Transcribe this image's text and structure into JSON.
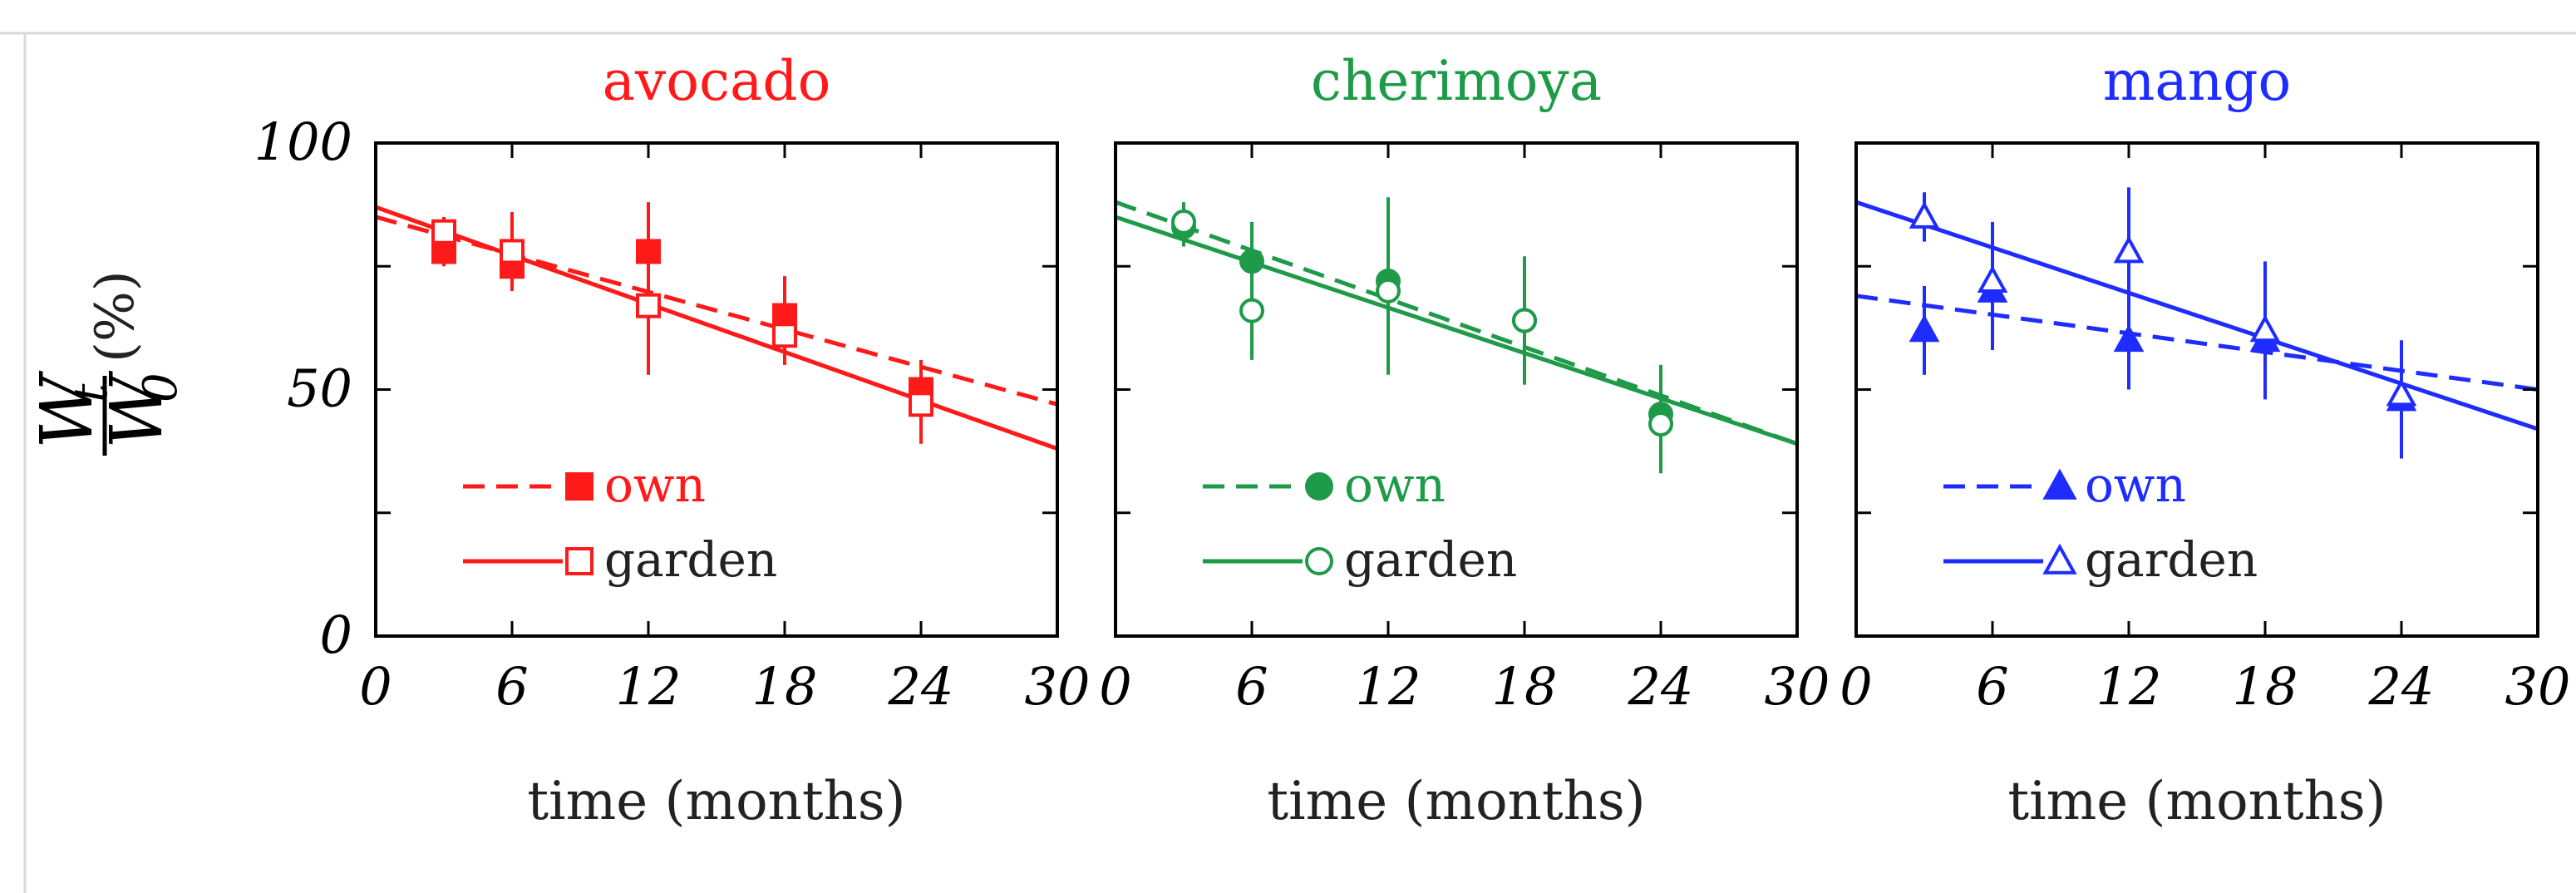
{
  "figure": {
    "y_label": {
      "numerator_var": "W",
      "numerator_sub": "t",
      "denominator_var": "W",
      "denominator_sub": "0",
      "unit": "(%)"
    }
  },
  "chart_data": [
    {
      "type": "scatter",
      "title": "avocado",
      "color": "#ff1a1a",
      "xlabel": "time (months)",
      "ylabel": "W_t / W_0 (%)",
      "xlim": [
        0,
        30
      ],
      "ylim": [
        0,
        100
      ],
      "xticks": [
        0,
        6,
        12,
        18,
        24,
        30
      ],
      "xtick_labels": [
        "0",
        "6",
        "12",
        "18",
        "24",
        "30"
      ],
      "yticks": [
        0,
        50,
        100
      ],
      "ytick_labels": [
        "0",
        "50",
        "100"
      ],
      "series": [
        {
          "name": "own",
          "marker": "square-filled",
          "line": "dashed",
          "points": [
            {
              "x": 3,
              "y": 78,
              "err": 3
            },
            {
              "x": 6,
              "y": 75,
              "err": 5
            },
            {
              "x": 12,
              "y": 78,
              "err": 10
            },
            {
              "x": 18,
              "y": 65,
              "err": 8
            },
            {
              "x": 24,
              "y": 50,
              "err": 6
            }
          ],
          "fit": {
            "x": [
              0,
              30
            ],
            "y": [
              85,
              47
            ]
          }
        },
        {
          "name": "garden",
          "marker": "square-open",
          "line": "solid",
          "points": [
            {
              "x": 3,
              "y": 82,
              "err": 3
            },
            {
              "x": 6,
              "y": 78,
              "err": 8
            },
            {
              "x": 12,
              "y": 67,
              "err": 14
            },
            {
              "x": 18,
              "y": 61,
              "err": 6
            },
            {
              "x": 24,
              "y": 47,
              "err": 8
            }
          ],
          "fit": {
            "x": [
              0,
              30
            ],
            "y": [
              87,
              38
            ]
          }
        }
      ]
    },
    {
      "type": "scatter",
      "title": "cherimoya",
      "color": "#1e9a48",
      "xlabel": "time (months)",
      "ylabel": "W_t / W_0 (%)",
      "xlim": [
        0,
        30
      ],
      "ylim": [
        0,
        100
      ],
      "xticks": [
        0,
        6,
        12,
        18,
        24,
        30
      ],
      "xtick_labels": [
        "0",
        "6",
        "12",
        "18",
        "24",
        "30"
      ],
      "yticks": [
        0,
        50,
        100
      ],
      "ytick_labels": [],
      "series": [
        {
          "name": "own",
          "marker": "circle-filled",
          "line": "dashed",
          "points": [
            {
              "x": 3,
              "y": 83,
              "err": 4
            },
            {
              "x": 6,
              "y": 76,
              "err": 8
            },
            {
              "x": 12,
              "y": 72,
              "err": 17
            },
            {
              "x": 18,
              "y": 64,
              "err": 13
            },
            {
              "x": 24,
              "y": 45,
              "err": 10
            }
          ],
          "fit": {
            "x": [
              0,
              30
            ],
            "y": [
              88,
              39
            ]
          }
        },
        {
          "name": "garden",
          "marker": "circle-open",
          "line": "solid",
          "points": [
            {
              "x": 3,
              "y": 84,
              "err": 4
            },
            {
              "x": 6,
              "y": 66,
              "err": 10
            },
            {
              "x": 12,
              "y": 70,
              "err": 17
            },
            {
              "x": 18,
              "y": 64,
              "err": 13
            },
            {
              "x": 24,
              "y": 43,
              "err": 10
            }
          ],
          "fit": {
            "x": [
              0,
              30
            ],
            "y": [
              85,
              39
            ]
          }
        }
      ]
    },
    {
      "type": "scatter",
      "title": "mango",
      "color": "#1f2cff",
      "xlabel": "time (months)",
      "ylabel": "W_t / W_0 (%)",
      "xlim": [
        0,
        30
      ],
      "ylim": [
        0,
        100
      ],
      "xticks": [
        0,
        6,
        12,
        18,
        24,
        30
      ],
      "xtick_labels": [
        "0",
        "6",
        "12",
        "18",
        "24",
        "30"
      ],
      "yticks": [
        0,
        50,
        100
      ],
      "ytick_labels": [],
      "series": [
        {
          "name": "own",
          "marker": "triangle-filled",
          "line": "dashed",
          "points": [
            {
              "x": 3,
              "y": 62,
              "err": 9
            },
            {
              "x": 6,
              "y": 70,
              "err": 12
            },
            {
              "x": 12,
              "y": 60,
              "err": 10
            },
            {
              "x": 18,
              "y": 60,
              "err": 10
            },
            {
              "x": 24,
              "y": 48,
              "err": 12
            }
          ],
          "fit": {
            "x": [
              0,
              30
            ],
            "y": [
              69,
              50
            ]
          }
        },
        {
          "name": "garden",
          "marker": "triangle-open",
          "line": "solid",
          "points": [
            {
              "x": 3,
              "y": 85,
              "err": 5
            },
            {
              "x": 6,
              "y": 72,
              "err": 12
            },
            {
              "x": 12,
              "y": 78,
              "err": 13
            },
            {
              "x": 18,
              "y": 62,
              "err": 14
            },
            {
              "x": 24,
              "y": 49,
              "err": 8
            }
          ],
          "fit": {
            "x": [
              0,
              30
            ],
            "y": [
              88,
              42
            ]
          }
        }
      ]
    }
  ]
}
